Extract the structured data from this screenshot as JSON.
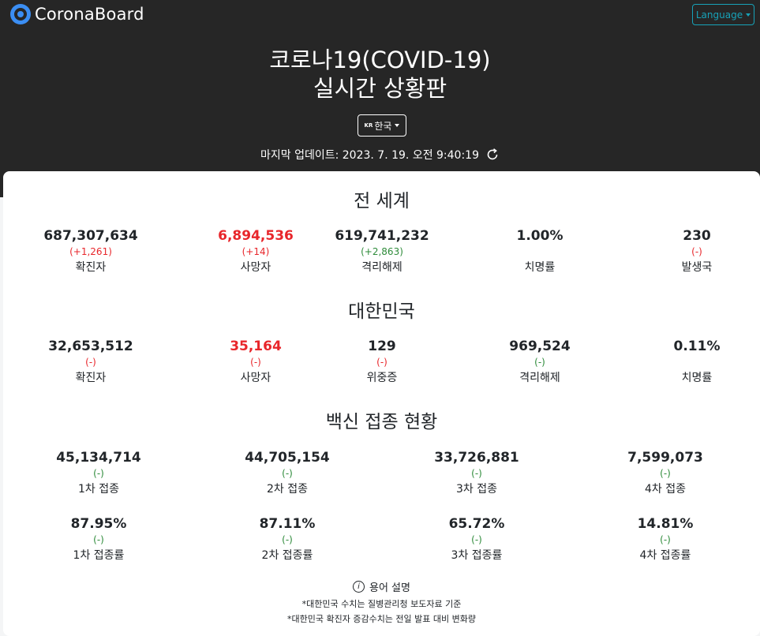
{
  "header": {
    "logo_text": "CoronaBoard",
    "language_label": "Language",
    "title_line1": "코로나19(COVID-19)",
    "title_line2": "실시간 상황판",
    "country_code": "KR",
    "country_label": "한국",
    "updated": "마지막 업데이트: 2023. 7. 19. 오전 9:40:19"
  },
  "world": {
    "title": "전 세계",
    "stats": [
      {
        "value": "687,307,634",
        "delta": "(+1,261)",
        "label": "확진자"
      },
      {
        "value": "6,894,536",
        "delta": "(+14)",
        "label": "사망자"
      },
      {
        "value": "619,741,232",
        "delta": "(+2,863)",
        "label": "격리해제"
      },
      {
        "value": "1.00%",
        "delta": "",
        "label": "치명률"
      },
      {
        "value": "230",
        "delta": "(-)",
        "label": "발생국"
      }
    ]
  },
  "korea": {
    "title": "대한민국",
    "stats": [
      {
        "value": "32,653,512",
        "delta": "(-)",
        "label": "확진자"
      },
      {
        "value": "35,164",
        "delta": "(-)",
        "label": "사망자"
      },
      {
        "value": "129",
        "delta": "(-)",
        "label": "위중증"
      },
      {
        "value": "969,524",
        "delta": "(-)",
        "label": "격리해제"
      },
      {
        "value": "0.11%",
        "delta": "",
        "label": "치명률"
      }
    ]
  },
  "vaccine": {
    "title": "백신 접종 현황",
    "counts": [
      {
        "value": "45,134,714",
        "delta": "(-)",
        "label": "1차 접종"
      },
      {
        "value": "44,705,154",
        "delta": "(-)",
        "label": "2차 접종"
      },
      {
        "value": "33,726,881",
        "delta": "(-)",
        "label": "3차 접종"
      },
      {
        "value": "7,599,073",
        "delta": "(-)",
        "label": "4차 접종"
      }
    ],
    "rates": [
      {
        "value": "87.95%",
        "delta": "(-)",
        "label": "1차 접종률"
      },
      {
        "value": "87.11%",
        "delta": "(-)",
        "label": "2차 접종률"
      },
      {
        "value": "65.72%",
        "delta": "(-)",
        "label": "3차 접종률"
      },
      {
        "value": "14.81%",
        "delta": "(-)",
        "label": "4차 접종률"
      }
    ]
  },
  "legend": {
    "title": "용어 설명",
    "notes": [
      "*대한민국 수치는 질병관리청 보도자료 기준",
      "*대한민국 확진자 증감수치는 전일 발표 대비 변화량"
    ]
  },
  "colors": {
    "increase_red": "#e8262b",
    "recovered_green": "#2e8b3a",
    "brand_blue": "#3b8ef3",
    "language_teal": "#17a2b8",
    "header_bg": "#262626"
  }
}
